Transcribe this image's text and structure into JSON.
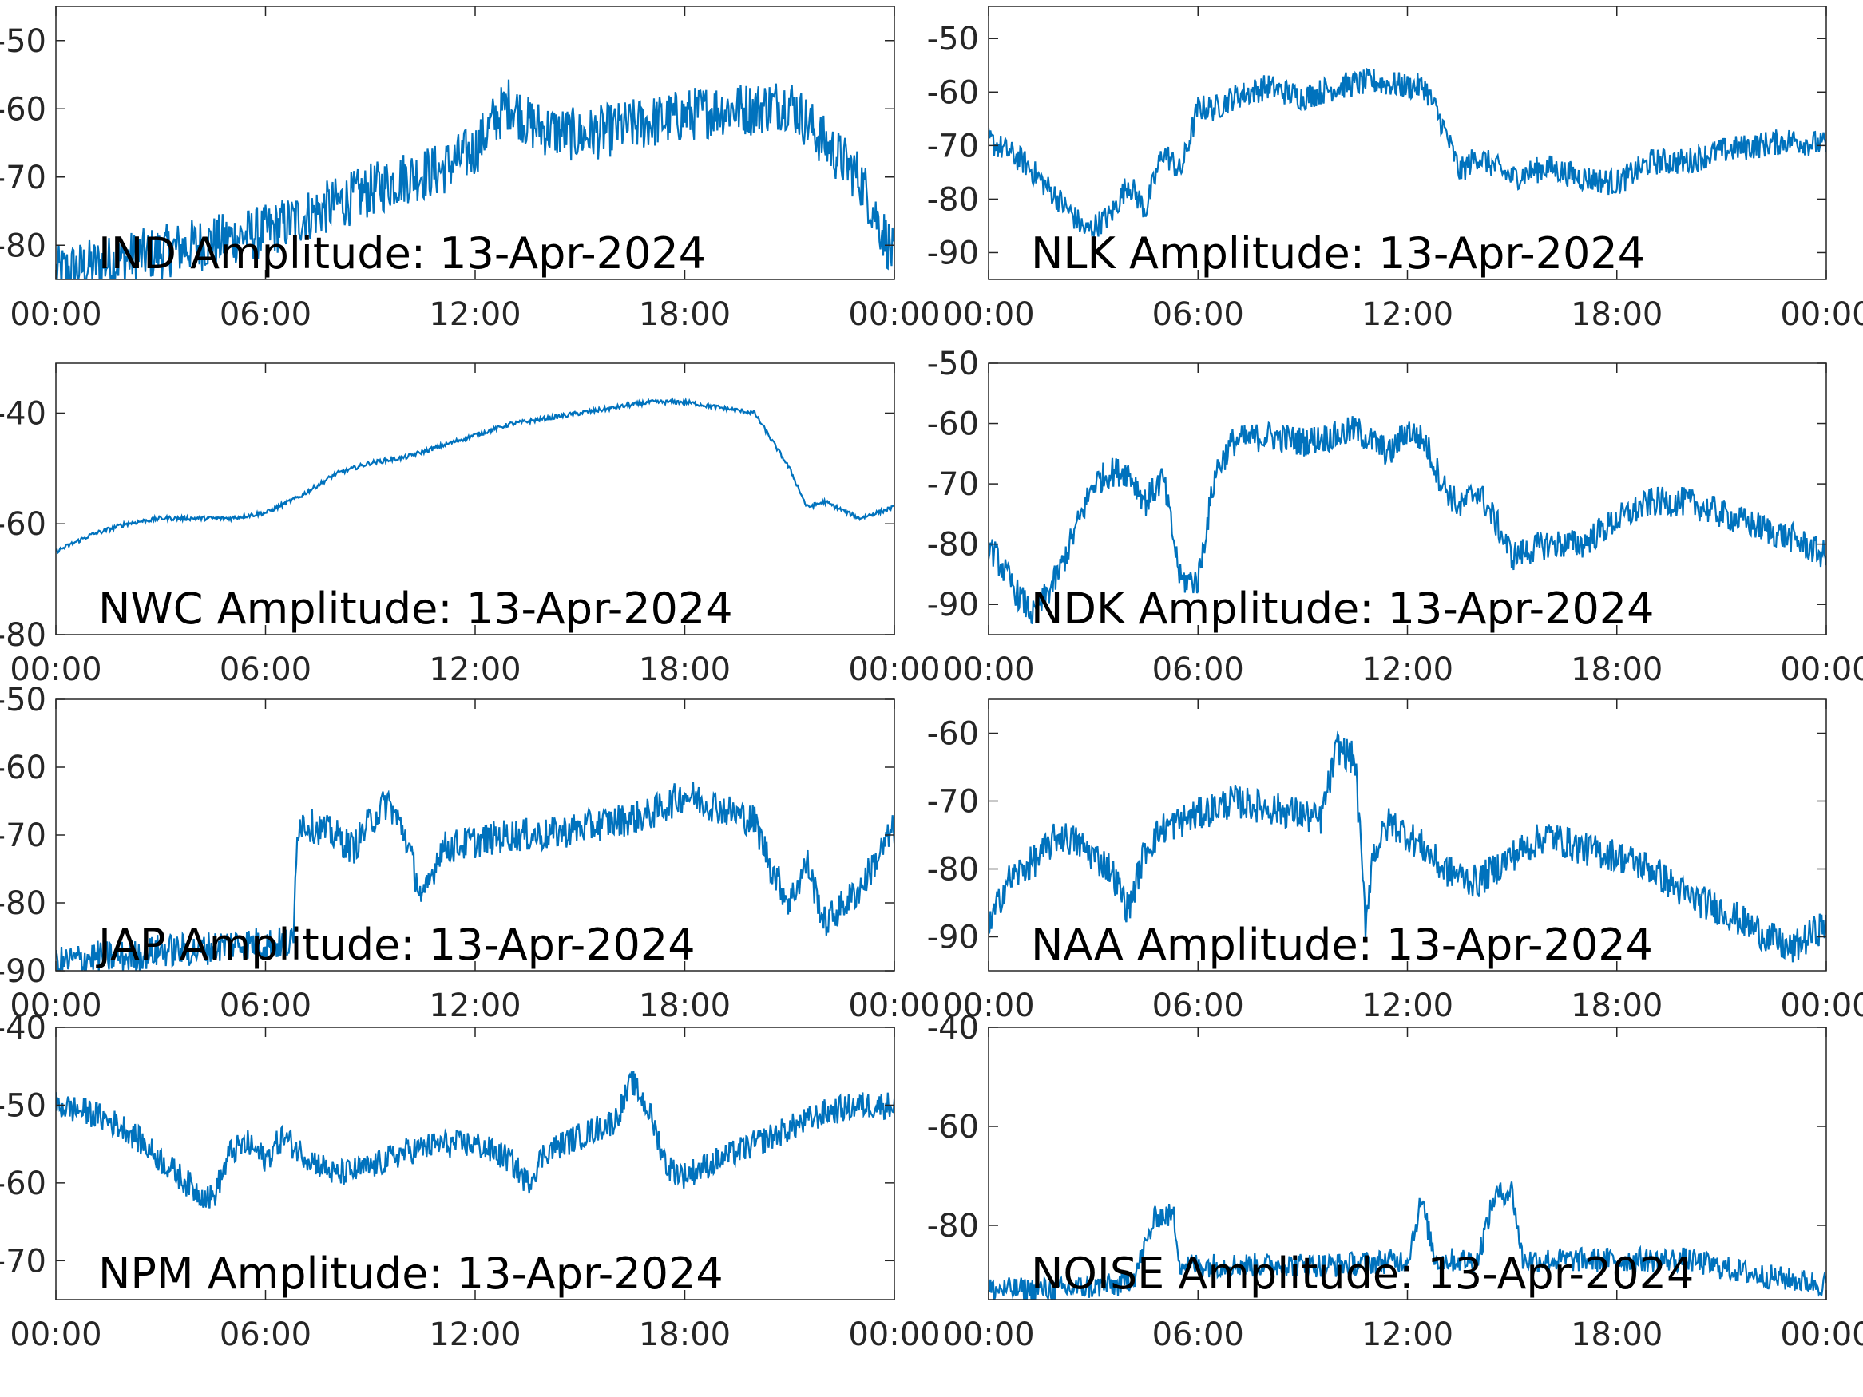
{
  "colors": {
    "line": "#0072bd",
    "axes": "#262626",
    "background": "#ffffff"
  },
  "chart_data": [
    {
      "type": "line",
      "annotation": "IND Amplitude: 13-Apr-2024",
      "x_ticks": [
        "00:00",
        "06:00",
        "12:00",
        "18:00",
        "00:00"
      ],
      "xlim_hours": [
        0,
        24
      ],
      "y_ticks": [
        "-50",
        "-60",
        "-70",
        "-80"
      ],
      "ylim": [
        -85,
        -45
      ],
      "y_tick_values": [
        -50,
        -60,
        -70,
        -80
      ],
      "series": [
        {
          "x_hours": [
            0,
            1,
            2,
            3,
            4,
            5,
            6,
            7,
            8,
            9,
            10,
            11,
            12,
            12.5,
            13,
            13.5,
            14,
            15,
            16,
            17,
            18,
            19,
            20,
            21,
            21.5,
            22,
            23,
            24
          ],
          "y": [
            -84,
            -83,
            -82,
            -81,
            -80,
            -79,
            -78,
            -76,
            -74,
            -72,
            -70,
            -69,
            -66,
            -62,
            -59,
            -62,
            -63,
            -64,
            -63,
            -62,
            -61,
            -60,
            -60,
            -59,
            -62,
            -65,
            -70,
            -82
          ],
          "noise": 4
        }
      ]
    },
    {
      "type": "line",
      "annotation": "NLK Amplitude: 13-Apr-2024",
      "x_ticks": [
        "00:00",
        "06:00",
        "12:00",
        "18:00",
        "00:00"
      ],
      "xlim_hours": [
        0,
        24
      ],
      "y_ticks": [
        "-50",
        "-60",
        "-70",
        "-80",
        "-90"
      ],
      "ylim": [
        -95,
        -44
      ],
      "y_tick_values": [
        -50,
        -60,
        -70,
        -80,
        -90
      ],
      "series": [
        {
          "x_hours": [
            0,
            1,
            2,
            2.8,
            3.5,
            4,
            4.5,
            5,
            5.5,
            6,
            6.5,
            7,
            8,
            9,
            10,
            11,
            12,
            12.5,
            13,
            13.5,
            14,
            15,
            16,
            17,
            18,
            19,
            20,
            21,
            22,
            23,
            24
          ],
          "y": [
            -69,
            -73,
            -80,
            -86,
            -83,
            -77,
            -82,
            -71,
            -75,
            -63,
            -63,
            -61,
            -59,
            -61,
            -59,
            -58,
            -59,
            -59,
            -66,
            -75,
            -72,
            -76,
            -74,
            -76,
            -77,
            -73,
            -73,
            -71,
            -70,
            -69,
            -70
          ],
          "noise": 2.5
        }
      ]
    },
    {
      "type": "line",
      "annotation": "NWC Amplitude: 13-Apr-2024",
      "x_ticks": [
        "00:00",
        "06:00",
        "12:00",
        "18:00",
        "00:00"
      ],
      "xlim_hours": [
        0,
        24
      ],
      "y_ticks": [
        "-40",
        "-60",
        "-80"
      ],
      "ylim": [
        -80,
        -31
      ],
      "y_tick_values": [
        -40,
        -60,
        -80
      ],
      "series": [
        {
          "x_hours": [
            0,
            1,
            2,
            3,
            4,
            5,
            6,
            7,
            8,
            9,
            10,
            11,
            12,
            13,
            14,
            15,
            16,
            17,
            18,
            19,
            20,
            20.5,
            21,
            21.5,
            22,
            23,
            24
          ],
          "y": [
            -65,
            -62,
            -60,
            -59,
            -59,
            -59,
            -58,
            -55,
            -51,
            -49,
            -48,
            -46,
            -44,
            -42,
            -41,
            -40,
            -39,
            -38,
            -38,
            -39,
            -40,
            -45,
            -50,
            -57,
            -56,
            -59,
            -57
          ],
          "noise": 0.4
        }
      ]
    },
    {
      "type": "line",
      "annotation": "NDK Amplitude: 13-Apr-2024",
      "x_ticks": [
        "00:00",
        "06:00",
        "12:00",
        "18:00",
        "00:00"
      ],
      "xlim_hours": [
        0,
        24
      ],
      "y_ticks": [
        "-50",
        "-60",
        "-70",
        "-80",
        "-90"
      ],
      "ylim": [
        -95,
        -50
      ],
      "y_tick_values": [
        -50,
        -60,
        -70,
        -80,
        -90
      ],
      "series": [
        {
          "x_hours": [
            0,
            0.8,
            1.3,
            2,
            3,
            3.5,
            4,
            4.5,
            5,
            5.5,
            6,
            6.5,
            7,
            8,
            9,
            10,
            10.5,
            11,
            11.5,
            12,
            12.5,
            13,
            13.5,
            14,
            14.5,
            15,
            16,
            17,
            18,
            19,
            20,
            21,
            22,
            23,
            24
          ],
          "y": [
            -80,
            -88,
            -92,
            -85,
            -70,
            -68,
            -68,
            -73,
            -69,
            -86,
            -86,
            -68,
            -63,
            -62,
            -63,
            -62,
            -61,
            -63,
            -65,
            -61,
            -63,
            -70,
            -74,
            -71,
            -76,
            -82,
            -80,
            -80,
            -76,
            -73,
            -73,
            -75,
            -77,
            -79,
            -82
          ],
          "noise": 2.5
        }
      ]
    },
    {
      "type": "line",
      "annotation": "JAP Amplitude: 13-Apr-2024",
      "x_ticks": [
        "00:00",
        "06:00",
        "12:00",
        "18:00",
        "00:00"
      ],
      "xlim_hours": [
        0,
        24
      ],
      "y_ticks": [
        "-50",
        "-60",
        "-70",
        "-80",
        "-90"
      ],
      "ylim": [
        -90,
        -50
      ],
      "y_tick_values": [
        -50,
        -60,
        -70,
        -80,
        -90
      ],
      "series": [
        {
          "x_hours": [
            0,
            1,
            2,
            3,
            4,
            5,
            6,
            6.8,
            6.9,
            7,
            8,
            8.5,
            9,
            9.5,
            10,
            10.5,
            11,
            12,
            13,
            14,
            15,
            16,
            17,
            18,
            19,
            20,
            20.5,
            21,
            21.5,
            22,
            23,
            24
          ],
          "y": [
            -89,
            -88,
            -88,
            -87,
            -87,
            -86,
            -86,
            -86,
            -69,
            -68,
            -70,
            -72,
            -68,
            -65,
            -70,
            -80,
            -72,
            -71,
            -70,
            -70,
            -69,
            -68,
            -67,
            -64,
            -66,
            -68,
            -75,
            -80,
            -74,
            -83,
            -78,
            -69
          ],
          "noise": 2.5
        }
      ]
    },
    {
      "type": "line",
      "annotation": "NAA Amplitude: 13-Apr-2024",
      "x_ticks": [
        "00:00",
        "06:00",
        "12:00",
        "18:00",
        "00:00"
      ],
      "xlim_hours": [
        0,
        24
      ],
      "y_ticks": [
        "-60",
        "-70",
        "-80",
        "-90"
      ],
      "ylim": [
        -95,
        -55
      ],
      "y_tick_values": [
        -60,
        -70,
        -80,
        -90
      ],
      "series": [
        {
          "x_hours": [
            0,
            0.5,
            1,
            1.5,
            2,
            2.5,
            3,
            3.5,
            4,
            4.5,
            5,
            5.5,
            6,
            7,
            8,
            9,
            9.5,
            10,
            10.5,
            10.8,
            11,
            11.5,
            12,
            12.5,
            13,
            14,
            15,
            16,
            17,
            18,
            19,
            20,
            21,
            22,
            23,
            24
          ],
          "y": [
            -89,
            -82,
            -80,
            -78,
            -75,
            -76,
            -78,
            -80,
            -86,
            -77,
            -74,
            -73,
            -72,
            -70,
            -71,
            -72,
            -73,
            -62,
            -64,
            -88,
            -78,
            -73,
            -75,
            -77,
            -80,
            -82,
            -78,
            -75,
            -77,
            -78,
            -80,
            -84,
            -86,
            -89,
            -92,
            -88
          ],
          "noise": 2.5
        }
      ]
    },
    {
      "type": "line",
      "annotation": "NPM Amplitude: 13-Apr-2024",
      "x_ticks": [
        "00:00",
        "06:00",
        "12:00",
        "18:00",
        "00:00"
      ],
      "xlim_hours": [
        0,
        24
      ],
      "y_ticks": [
        "-40",
        "-50",
        "-60",
        "-70"
      ],
      "ylim": [
        -75,
        -40
      ],
      "y_tick_values": [
        -40,
        -50,
        -60,
        -70
      ],
      "series": [
        {
          "x_hours": [
            0,
            1,
            2,
            3,
            4,
            4.5,
            5,
            5.5,
            6,
            6.5,
            7,
            8,
            9,
            10,
            11,
            12,
            13,
            13.5,
            14,
            15,
            16,
            16.5,
            17,
            17.5,
            18,
            19,
            20,
            21,
            22,
            23,
            24
          ],
          "y": [
            -50,
            -51,
            -53,
            -57,
            -61,
            -62,
            -56,
            -55,
            -57,
            -54,
            -56,
            -59,
            -58,
            -56,
            -55,
            -55,
            -57,
            -60,
            -56,
            -54,
            -52,
            -47,
            -51,
            -58,
            -59,
            -57,
            -55,
            -53,
            -51,
            -50,
            -50
          ],
          "noise": 1.8
        }
      ]
    },
    {
      "type": "line",
      "annotation": "NOISE Amplitude: 13-Apr-2024",
      "x_ticks": [
        "00:00",
        "06:00",
        "12:00",
        "18:00",
        "00:00"
      ],
      "xlim_hours": [
        0,
        24
      ],
      "y_ticks": [
        "-40",
        "-60",
        "-80"
      ],
      "ylim": [
        -95,
        -40
      ],
      "y_tick_values": [
        -40,
        -60,
        -80
      ],
      "series": [
        {
          "x_hours": [
            0,
            2,
            3.8,
            4.2,
            4.8,
            5.3,
            5.5,
            6,
            8,
            10,
            12,
            12.4,
            12.8,
            13,
            14,
            14.5,
            15,
            15.3,
            16,
            18,
            20,
            22,
            24
          ],
          "y": [
            -93,
            -93,
            -92,
            -90,
            -78,
            -78,
            -88,
            -88,
            -88,
            -88,
            -87,
            -75,
            -87,
            -87,
            -87,
            -74,
            -73,
            -87,
            -87,
            -87,
            -87,
            -90,
            -92
          ],
          "noise": 2.5
        }
      ]
    }
  ]
}
